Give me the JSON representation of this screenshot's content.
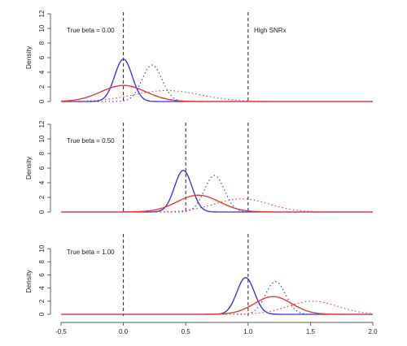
{
  "chart_data": [
    {
      "type": "line",
      "xlim": [
        -0.5,
        2.0
      ],
      "ylim": [
        0,
        12
      ],
      "ylabel": "Density",
      "yticks": [
        0,
        2,
        4,
        6,
        8,
        10,
        12
      ],
      "xticks": [],
      "annotations": [
        "True beta = 0.00",
        "High SNRx"
      ],
      "vlines": [
        0.0,
        1.0
      ],
      "series": [
        {
          "color": "#3333dd",
          "style": "solid",
          "mean": 0.0,
          "sd": 0.07,
          "scale": 1.0
        },
        {
          "color": "#3333dd",
          "style": "dashed",
          "mean": 0.0,
          "sd": 0.07,
          "scale": 1.0
        },
        {
          "color": "#3333dd",
          "style": "dotted",
          "mean": 0.23,
          "sd": 0.08,
          "scale": 1.0
        },
        {
          "color": "#ee3333",
          "style": "solid",
          "mean": 0.0,
          "sd": 0.18,
          "scale": 1.0
        },
        {
          "color": "#ee3333",
          "style": "dashed",
          "mean": 0.0,
          "sd": 0.18,
          "scale": 1.0
        },
        {
          "color": "#ee3333",
          "style": "dotted",
          "mean": 0.35,
          "sd": 0.27,
          "scale": 1.0
        }
      ],
      "y_peak_values": [
        5.8,
        5.8,
        5.0,
        2.2,
        2.2,
        1.5
      ]
    },
    {
      "type": "line",
      "xlim": [
        -0.5,
        2.0
      ],
      "ylim": [
        0,
        12
      ],
      "ylabel": "Density",
      "yticks": [
        0,
        2,
        4,
        6,
        8,
        10,
        12
      ],
      "xticks": [],
      "annotations": [
        "True beta = 0.50"
      ],
      "vlines": [
        0.0,
        0.5,
        1.0
      ],
      "series": [
        {
          "color": "#3333dd",
          "style": "solid",
          "mean": 0.48,
          "sd": 0.07,
          "scale": 1.0
        },
        {
          "color": "#3333dd",
          "style": "dashed",
          "mean": 0.48,
          "sd": 0.07,
          "scale": 1.0
        },
        {
          "color": "#3333dd",
          "style": "dotted",
          "mean": 0.73,
          "sd": 0.08,
          "scale": 1.0
        },
        {
          "color": "#ee3333",
          "style": "solid",
          "mean": 0.6,
          "sd": 0.17,
          "scale": 1.0
        },
        {
          "color": "#ee3333",
          "style": "dashed",
          "mean": 0.6,
          "sd": 0.17,
          "scale": 1.0
        },
        {
          "color": "#ee3333",
          "style": "dotted",
          "mean": 0.95,
          "sd": 0.22,
          "scale": 1.0
        }
      ],
      "y_peak_values": [
        5.7,
        5.7,
        5.0,
        2.3,
        2.3,
        1.8
      ]
    },
    {
      "type": "line",
      "xlim": [
        -0.5,
        2.0
      ],
      "ylim": [
        0,
        12
      ],
      "ylabel": "Density",
      "yticks": [
        0,
        2,
        4,
        6,
        8,
        10
      ],
      "xticks": [
        -0.5,
        0.0,
        0.5,
        1.0,
        1.5,
        2.0
      ],
      "xtick_labels": [
        "-0.5",
        "0.0",
        "0.5",
        "1.0",
        "1.5",
        "2.0"
      ],
      "annotations": [
        "True beta = 1.00"
      ],
      "vlines": [
        0.0,
        1.0
      ],
      "series": [
        {
          "color": "#3333dd",
          "style": "solid",
          "mean": 0.98,
          "sd": 0.07,
          "scale": 1.0
        },
        {
          "color": "#3333dd",
          "style": "dashed",
          "mean": 0.98,
          "sd": 0.07,
          "scale": 1.0
        },
        {
          "color": "#3333dd",
          "style": "dotted",
          "mean": 1.22,
          "sd": 0.08,
          "scale": 1.0
        },
        {
          "color": "#ee3333",
          "style": "solid",
          "mean": 1.2,
          "sd": 0.15,
          "scale": 1.0
        },
        {
          "color": "#ee3333",
          "style": "dashed",
          "mean": 1.2,
          "sd": 0.15,
          "scale": 1.0
        },
        {
          "color": "#ee3333",
          "style": "dotted",
          "mean": 1.52,
          "sd": 0.2,
          "scale": 1.0
        }
      ],
      "y_peak_values": [
        5.6,
        5.6,
        5.0,
        2.7,
        2.7,
        2.0
      ]
    }
  ]
}
